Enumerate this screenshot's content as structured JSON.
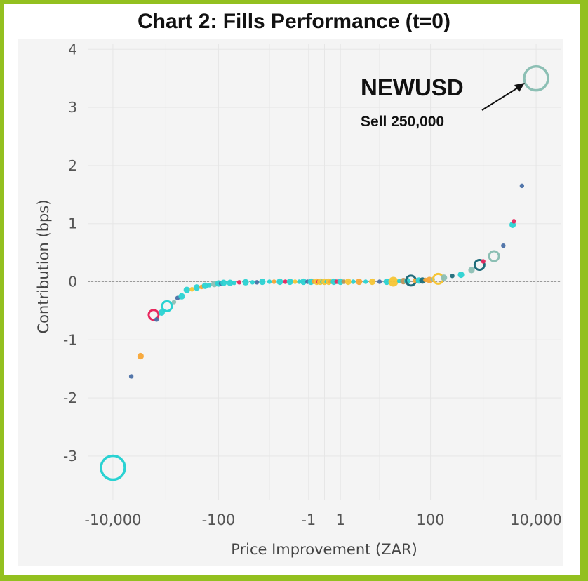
{
  "chart_data": {
    "type": "scatter",
    "title": "Chart 2: Fills Performance (t=0)",
    "xlabel": "Price Improvement (ZAR)",
    "ylabel": "Contribution (bps)",
    "xscale": "symlog",
    "xlim": [
      -30000,
      30000
    ],
    "ylim": [
      -3.75,
      4.1
    ],
    "x_tick_labels": [
      "-10,000",
      "-100",
      "-1",
      "1",
      "100",
      "10,000"
    ],
    "y_tick_labels": [
      "-3",
      "-2",
      "-1",
      "0",
      "1",
      "2",
      "3",
      "4"
    ],
    "grid": true,
    "reference_line_y": 0,
    "annotation": {
      "title": "NEWUSD",
      "subtitle": "Sell 250,000",
      "x": 10000,
      "y": 3.5
    },
    "colors": {
      "teal": "#2ad2d2",
      "navy": "#4a6fa5",
      "orange": "#f7a535",
      "crimson": "#e8285e",
      "yellow": "#f6c535",
      "dark_teal": "#1f6b7a",
      "sage": "#8cbfb4",
      "brown": "#b8925a"
    },
    "points": [
      {
        "x": -10000,
        "y": -3.2,
        "size": "xl",
        "color": "teal",
        "hollow": true
      },
      {
        "x": -4500,
        "y": -1.63,
        "size": "s",
        "color": "navy"
      },
      {
        "x": -3000,
        "y": -1.28,
        "size": "m",
        "color": "orange"
      },
      {
        "x": -1700,
        "y": -0.57,
        "size": "l",
        "color": "crimson",
        "hollow": true
      },
      {
        "x": -1500,
        "y": -0.65,
        "size": "s",
        "color": "navy"
      },
      {
        "x": -1200,
        "y": -0.53,
        "size": "m",
        "color": "teal"
      },
      {
        "x": -950,
        "y": -0.42,
        "size": "l",
        "color": "teal",
        "hollow": true
      },
      {
        "x": -700,
        "y": -0.35,
        "size": "s",
        "color": "sage"
      },
      {
        "x": -600,
        "y": -0.28,
        "size": "s",
        "color": "navy"
      },
      {
        "x": -500,
        "y": -0.25,
        "size": "m",
        "color": "teal"
      },
      {
        "x": -400,
        "y": -0.14,
        "size": "m",
        "color": "teal"
      },
      {
        "x": -320,
        "y": -0.13,
        "size": "s",
        "color": "yellow"
      },
      {
        "x": -260,
        "y": -0.1,
        "size": "m",
        "color": "teal"
      },
      {
        "x": -210,
        "y": -0.09,
        "size": "s",
        "color": "orange"
      },
      {
        "x": -180,
        "y": -0.07,
        "size": "m",
        "color": "teal"
      },
      {
        "x": -150,
        "y": -0.06,
        "size": "s",
        "color": "teal"
      },
      {
        "x": -120,
        "y": -0.04,
        "size": "m",
        "color": "sage"
      },
      {
        "x": -100,
        "y": -0.03,
        "size": "m",
        "color": "teal"
      },
      {
        "x": -90,
        "y": -0.03,
        "size": "s",
        "color": "navy"
      },
      {
        "x": -80,
        "y": -0.02,
        "size": "m",
        "color": "teal"
      },
      {
        "x": -60,
        "y": -0.02,
        "size": "m",
        "color": "teal"
      },
      {
        "x": -50,
        "y": -0.02,
        "size": "s",
        "color": "teal"
      },
      {
        "x": -40,
        "y": -0.01,
        "size": "s",
        "color": "crimson"
      },
      {
        "x": -30,
        "y": -0.01,
        "size": "m",
        "color": "teal"
      },
      {
        "x": -22,
        "y": -0.01,
        "size": "s",
        "color": "teal"
      },
      {
        "x": -18,
        "y": -0.01,
        "size": "s",
        "color": "navy"
      },
      {
        "x": -14,
        "y": 0,
        "size": "m",
        "color": "teal"
      },
      {
        "x": -10,
        "y": 0,
        "size": "s",
        "color": "teal"
      },
      {
        "x": -8,
        "y": 0,
        "size": "s",
        "color": "orange"
      },
      {
        "x": -6,
        "y": 0,
        "size": "m",
        "color": "teal"
      },
      {
        "x": -4.5,
        "y": 0,
        "size": "s",
        "color": "crimson"
      },
      {
        "x": -3.5,
        "y": 0,
        "size": "m",
        "color": "teal"
      },
      {
        "x": -2.6,
        "y": 0,
        "size": "s",
        "color": "yellow"
      },
      {
        "x": -2,
        "y": 0,
        "size": "s",
        "color": "teal"
      },
      {
        "x": -1.5,
        "y": 0,
        "size": "m",
        "color": "teal"
      },
      {
        "x": -1.1,
        "y": 0,
        "size": "s",
        "color": "navy"
      },
      {
        "x": -0.8,
        "y": 0,
        "size": "m",
        "color": "teal"
      },
      {
        "x": -0.6,
        "y": 0,
        "size": "s",
        "color": "orange"
      },
      {
        "x": -0.4,
        "y": 0,
        "size": "m",
        "color": "yellow"
      },
      {
        "x": -0.3,
        "y": 0,
        "size": "s",
        "color": "crimson"
      },
      {
        "x": -0.2,
        "y": 0,
        "size": "m",
        "color": "yellow"
      },
      {
        "x": -0.1,
        "y": 0,
        "size": "s",
        "color": "teal"
      },
      {
        "x": 0,
        "y": 0,
        "size": "m",
        "color": "yellow"
      },
      {
        "x": 0.1,
        "y": 0,
        "size": "s",
        "color": "teal"
      },
      {
        "x": 0.2,
        "y": 0,
        "size": "m",
        "color": "yellow"
      },
      {
        "x": 0.3,
        "y": 0,
        "size": "s",
        "color": "orange"
      },
      {
        "x": 0.5,
        "y": 0,
        "size": "m",
        "color": "teal"
      },
      {
        "x": 0.7,
        "y": 0,
        "size": "s",
        "color": "crimson"
      },
      {
        "x": 1,
        "y": 0,
        "size": "m",
        "color": "teal"
      },
      {
        "x": 1.3,
        "y": 0,
        "size": "s",
        "color": "brown"
      },
      {
        "x": 1.8,
        "y": 0,
        "size": "m",
        "color": "yellow"
      },
      {
        "x": 2.5,
        "y": 0,
        "size": "s",
        "color": "teal"
      },
      {
        "x": 3.5,
        "y": 0,
        "size": "m",
        "color": "orange"
      },
      {
        "x": 5,
        "y": 0,
        "size": "s",
        "color": "teal"
      },
      {
        "x": 7,
        "y": 0,
        "size": "m",
        "color": "yellow"
      },
      {
        "x": 10,
        "y": 0,
        "size": "s",
        "color": "navy"
      },
      {
        "x": 14,
        "y": 0,
        "size": "m",
        "color": "teal"
      },
      {
        "x": 19,
        "y": 0,
        "size": "l",
        "color": "yellow"
      },
      {
        "x": 25,
        "y": 0.01,
        "size": "s",
        "color": "teal"
      },
      {
        "x": 30,
        "y": 0.01,
        "size": "m",
        "color": "brown"
      },
      {
        "x": 36,
        "y": 0.01,
        "size": "m",
        "color": "teal"
      },
      {
        "x": 42,
        "y": 0.02,
        "size": "l",
        "color": "dark_teal",
        "hollow": true
      },
      {
        "x": 50,
        "y": 0.02,
        "size": "s",
        "color": "orange"
      },
      {
        "x": 60,
        "y": 0.02,
        "size": "m",
        "color": "teal"
      },
      {
        "x": 70,
        "y": 0.02,
        "size": "m",
        "color": "dark_teal"
      },
      {
        "x": 80,
        "y": 0.03,
        "size": "s",
        "color": "orange"
      },
      {
        "x": 95,
        "y": 0.03,
        "size": "m",
        "color": "orange"
      },
      {
        "x": 110,
        "y": 0.04,
        "size": "s",
        "color": "sage"
      },
      {
        "x": 140,
        "y": 0.05,
        "size": "l",
        "color": "yellow",
        "hollow": true
      },
      {
        "x": 180,
        "y": 0.07,
        "size": "m",
        "color": "sage"
      },
      {
        "x": 260,
        "y": 0.1,
        "size": "s",
        "color": "dark_teal"
      },
      {
        "x": 380,
        "y": 0.12,
        "size": "m",
        "color": "teal"
      },
      {
        "x": 600,
        "y": 0.2,
        "size": "m",
        "color": "sage"
      },
      {
        "x": 850,
        "y": 0.29,
        "size": "l",
        "color": "dark_teal",
        "hollow": true
      },
      {
        "x": 1000,
        "y": 0.35,
        "size": "s",
        "color": "crimson"
      },
      {
        "x": 1600,
        "y": 0.44,
        "size": "l",
        "color": "sage",
        "hollow": true
      },
      {
        "x": 2400,
        "y": 0.62,
        "size": "s",
        "color": "navy"
      },
      {
        "x": 3600,
        "y": 0.98,
        "size": "m",
        "color": "teal"
      },
      {
        "x": 3800,
        "y": 1.04,
        "size": "s",
        "color": "crimson"
      },
      {
        "x": 5400,
        "y": 1.65,
        "size": "s",
        "color": "navy"
      },
      {
        "x": 10000,
        "y": 3.5,
        "size": "xl",
        "color": "sage",
        "hollow": true
      }
    ]
  }
}
